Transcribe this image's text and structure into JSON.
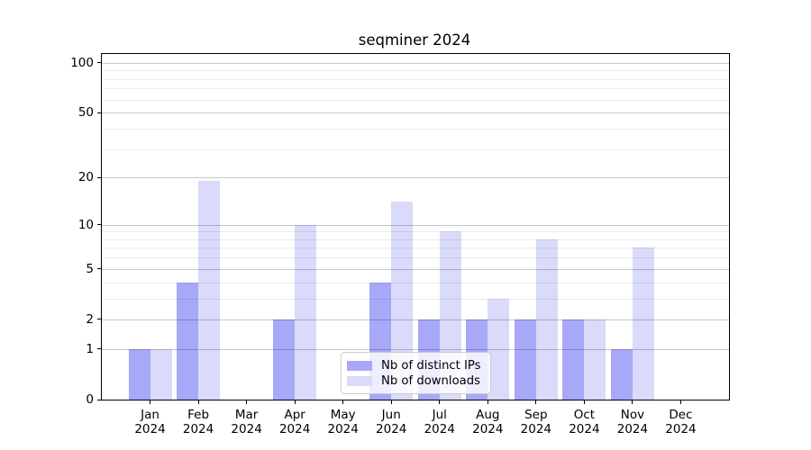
{
  "chart_data": {
    "type": "bar",
    "title": "seqminer 2024",
    "categories": [
      "Jan",
      "Feb",
      "Mar",
      "Apr",
      "May",
      "Jun",
      "Jul",
      "Aug",
      "Sep",
      "Oct",
      "Nov",
      "Dec"
    ],
    "x_year": "2024",
    "series": [
      {
        "name": "Nb of distinct IPs",
        "color": "#a8a8f8",
        "values": [
          1,
          4,
          0,
          2,
          0,
          4,
          2,
          2,
          2,
          2,
          1,
          0
        ]
      },
      {
        "name": "Nb of downloads",
        "color": "#dadafa",
        "values": [
          1,
          19,
          0,
          10,
          0,
          14,
          9,
          3,
          8,
          2,
          7,
          0
        ]
      }
    ],
    "yscale": "log1p",
    "ylim": [
      0,
      113
    ],
    "yticks": [
      0,
      1,
      2,
      5,
      10,
      20,
      50,
      100
    ],
    "yticks_minor": [
      3,
      4,
      6,
      7,
      8,
      9,
      30,
      40,
      60,
      70,
      80,
      90
    ],
    "grid": true,
    "legend_position": "lower center",
    "colors": {
      "major_grid": "#c7c7c7",
      "minor_grid": "#ebebeb",
      "spine": "#000000",
      "text": "#000000",
      "legend_border": "#cccccc"
    }
  }
}
